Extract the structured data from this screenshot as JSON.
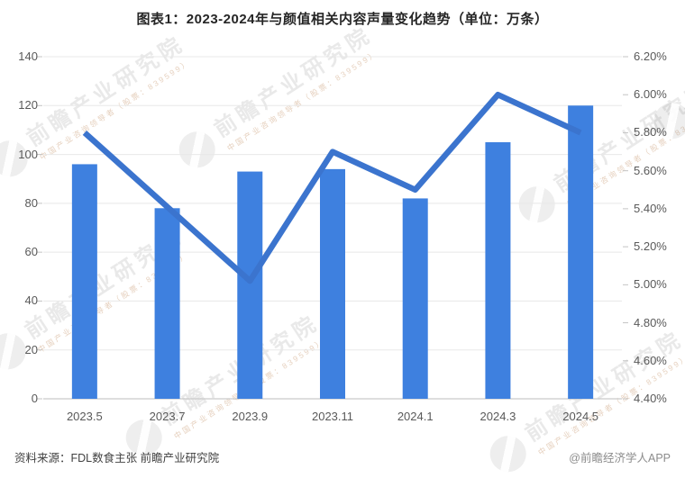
{
  "title": "图表1：2023-2024年与颜值相关内容声量变化趋势（单位：万条）",
  "chart_data": {
    "type": "combo",
    "categories": [
      "2023.5",
      "2023.7",
      "2023.9",
      "2023.11",
      "2024.1",
      "2024.3",
      "2024.5"
    ],
    "series": [
      {
        "type": "bar",
        "axis": "left",
        "values": [
          96,
          78,
          93,
          94,
          82,
          105,
          120
        ]
      },
      {
        "type": "line",
        "axis": "right",
        "values": [
          5.8,
          5.41,
          5.02,
          5.7,
          5.5,
          6.0,
          5.8
        ]
      }
    ],
    "left_axis": {
      "min": 0,
      "max": 140,
      "step": 20,
      "tick_labels": [
        "0",
        "20",
        "40",
        "60",
        "80",
        "100",
        "120",
        "140"
      ]
    },
    "right_axis": {
      "min": 4.4,
      "max": 6.2,
      "step": 0.2,
      "tick_labels": [
        "4.40%",
        "4.60%",
        "4.80%",
        "5.00%",
        "5.20%",
        "5.40%",
        "5.60%",
        "5.80%",
        "6.00%",
        "6.20%"
      ]
    },
    "grid": true,
    "legend": "none"
  },
  "watermark": {
    "logo": "qianzhan-logo",
    "big": "前瞻产业研究院",
    "small": "中国产业咨询领导者（股票：839599）"
  },
  "footer": {
    "source": "资料来源：FDL数食主张  前瞻产业研究院",
    "credit": "@前瞻经济学人APP"
  },
  "colors": {
    "bar": "#3E80DF",
    "line": "#3B74CE",
    "grid": "#E8E8E8",
    "baseline": "#C9C9C9",
    "tick": "#C4C4C4",
    "label": "#595959",
    "title": "#262626",
    "source": "#404040",
    "credit": "#8C8C8C"
  }
}
